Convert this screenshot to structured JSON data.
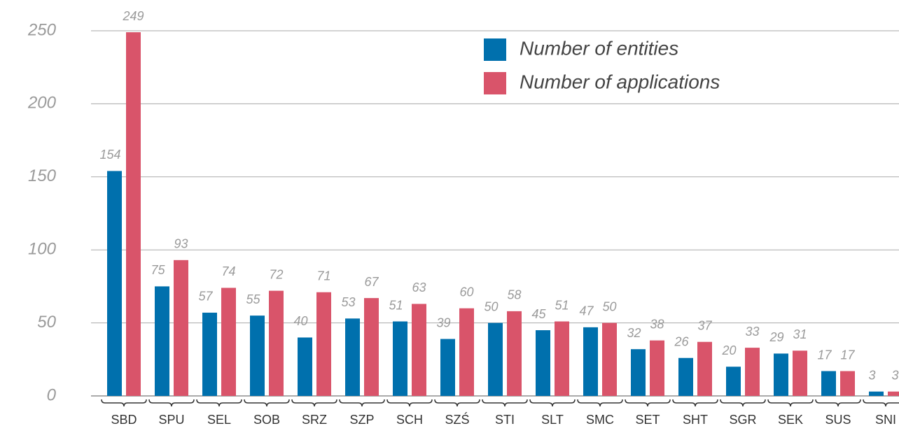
{
  "chart_data": {
    "type": "bar",
    "categories": [
      "SBD",
      "SPU",
      "SEL",
      "SOB",
      "SRZ",
      "SZP",
      "SCH",
      "SZŚ",
      "STI",
      "SLT",
      "SMC",
      "SET",
      "SHT",
      "SGR",
      "SEK",
      "SUS",
      "SNI"
    ],
    "series": [
      {
        "name": "Number of entities",
        "color": "#0070ad",
        "values": [
          154,
          75,
          57,
          55,
          40,
          53,
          51,
          39,
          50,
          45,
          47,
          32,
          26,
          20,
          29,
          17,
          3
        ]
      },
      {
        "name": "Number of applications",
        "color": "#d9546a",
        "values": [
          249,
          93,
          74,
          72,
          71,
          67,
          63,
          60,
          58,
          51,
          50,
          38,
          37,
          33,
          31,
          17,
          3
        ]
      }
    ],
    "ylim": [
      0,
      250
    ],
    "yticks": [
      0,
      50,
      100,
      150,
      200,
      250
    ],
    "grid": true,
    "legend": "top-center"
  }
}
